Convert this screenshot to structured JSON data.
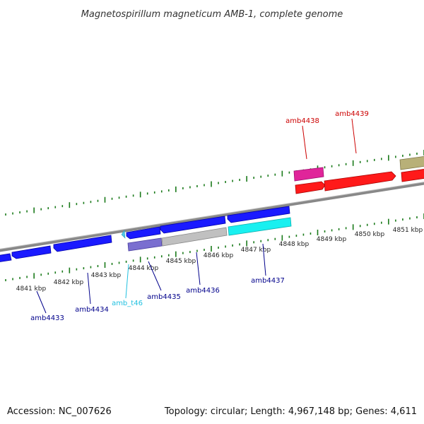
{
  "title": "Magnetospirillum magneticum AMB-1, complete genome",
  "footer": {
    "accession": "Accession: NC_007626",
    "topology": "Topology: circular; Length: 4,967,148 bp; Genes: 4,611"
  },
  "kbp_ticks": [
    "4841 kbp",
    "4842 kbp",
    "4843 kbp",
    "4844 kbp",
    "4845 kbp",
    "4846 kbp",
    "4847 kbp",
    "4848 kbp",
    "4849 kbp",
    "4850 kbp",
    "4851 kbp"
  ],
  "gene_labels": [
    {
      "text": "amb4433",
      "color": "#00008b"
    },
    {
      "text": "amb4434",
      "color": "#00008b"
    },
    {
      "text": "amb_t46",
      "color": "#20c0e0"
    },
    {
      "text": "amb4435",
      "color": "#00008b"
    },
    {
      "text": "amb4436",
      "color": "#00008b"
    },
    {
      "text": "amb4437",
      "color": "#00008b"
    },
    {
      "text": "amb4438",
      "color": "#cc0000"
    },
    {
      "text": "amb4439",
      "color": "#cc0000"
    }
  ],
  "colors": {
    "forward_gene": "#1a1aff",
    "reverse_gene": "#ff1a1a",
    "trna": "#4dc6e6",
    "pink_feature": "#e0259a",
    "purple_feature": "#7a6fd0",
    "grey_feature": "#c0c0c0",
    "cyan_feature": "#19f0f0",
    "olive_feature": "#b8b078",
    "backbone": "#888888",
    "tick": "#1a7a1a"
  }
}
